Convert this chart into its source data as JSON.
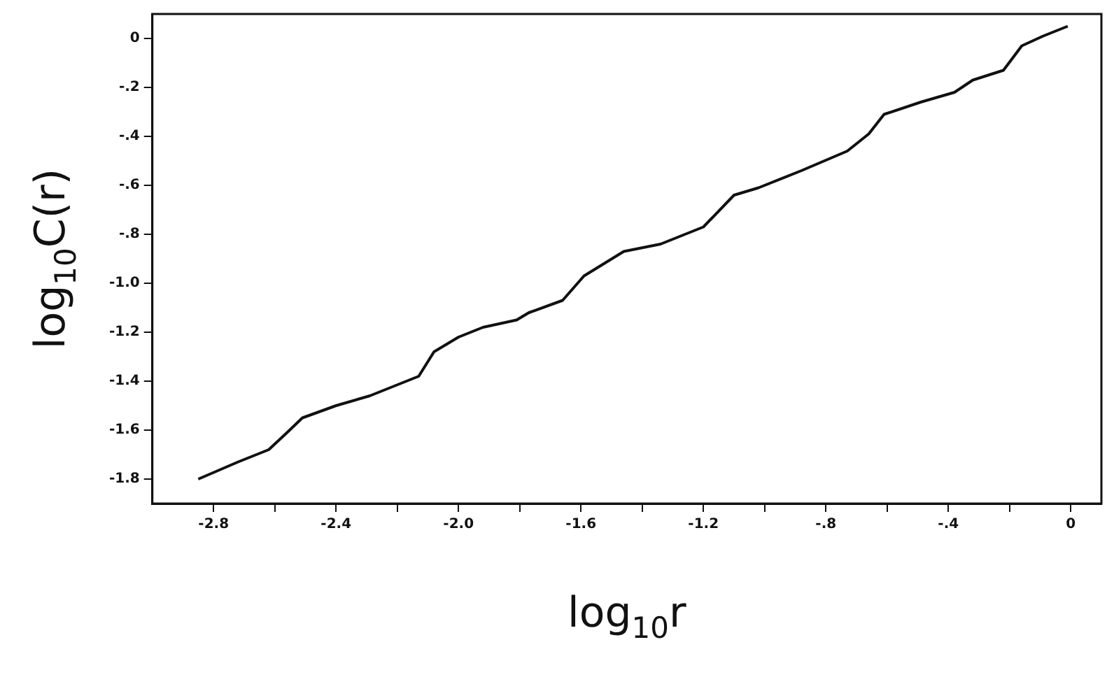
{
  "chart_data": {
    "type": "line",
    "xlabel": "log$_{10}$r",
    "ylabel": "log$_{10}$C(r)",
    "color": "#111111",
    "grid": false,
    "legend": false,
    "marker": "none",
    "line_style": "solid",
    "xlim": [
      -3.0,
      0.1
    ],
    "ylim": [
      -1.9,
      0.1
    ],
    "xticks": [
      {
        "value": -2.8,
        "label": "-2.8"
      },
      {
        "value": -2.6,
        "label": null
      },
      {
        "value": -2.4,
        "label": "-2.4"
      },
      {
        "value": -2.2,
        "label": null
      },
      {
        "value": -2,
        "label": "-2.0"
      },
      {
        "value": -1.8,
        "label": null
      },
      {
        "value": -1.6,
        "label": "-1.6"
      },
      {
        "value": -1.4,
        "label": null
      },
      {
        "value": -1.2,
        "label": "-1.2"
      },
      {
        "value": -1,
        "label": null
      },
      {
        "value": -0.8,
        "label": "-.8"
      },
      {
        "value": -0.6,
        "label": null
      },
      {
        "value": -0.4,
        "label": "-.4"
      },
      {
        "value": -0.2,
        "label": null
      },
      {
        "value": 0,
        "label": "0"
      }
    ],
    "yticks": [
      {
        "value": 0,
        "label": "0"
      },
      {
        "value": -0.2,
        "label": "-.2"
      },
      {
        "value": -0.4,
        "label": "-.4"
      },
      {
        "value": -0.6,
        "label": "-.6"
      },
      {
        "value": -0.8,
        "label": "-.8"
      },
      {
        "value": -1,
        "label": "-1.0"
      },
      {
        "value": -1.2,
        "label": "-1.2"
      },
      {
        "value": -1.4,
        "label": "-1.4"
      },
      {
        "value": -1.6,
        "label": "-1.6"
      },
      {
        "value": -1.8,
        "label": "-1.8"
      }
    ],
    "x": [
      -2.85,
      -2.72,
      -2.62,
      -2.56,
      -2.51,
      -2.4,
      -2.29,
      -2.13,
      -2.08,
      -2.0,
      -1.92,
      -1.81,
      -1.77,
      -1.66,
      -1.59,
      -1.46,
      -1.34,
      -1.28,
      -1.2,
      -1.1,
      -1.02,
      -0.88,
      -0.73,
      -0.66,
      -0.61,
      -0.49,
      -0.38,
      -0.32,
      -0.22,
      -0.16,
      -0.09,
      -0.01
    ],
    "values": [
      -1.8,
      -1.73,
      -1.68,
      -1.61,
      -1.55,
      -1.5,
      -1.46,
      -1.38,
      -1.28,
      -1.22,
      -1.18,
      -1.15,
      -1.12,
      -1.07,
      -0.97,
      -0.87,
      -0.84,
      -0.81,
      -0.77,
      -0.64,
      -0.61,
      -0.54,
      -0.46,
      -0.39,
      -0.31,
      -0.26,
      -0.22,
      -0.17,
      -0.13,
      -0.03,
      0.01,
      0.05
    ]
  }
}
